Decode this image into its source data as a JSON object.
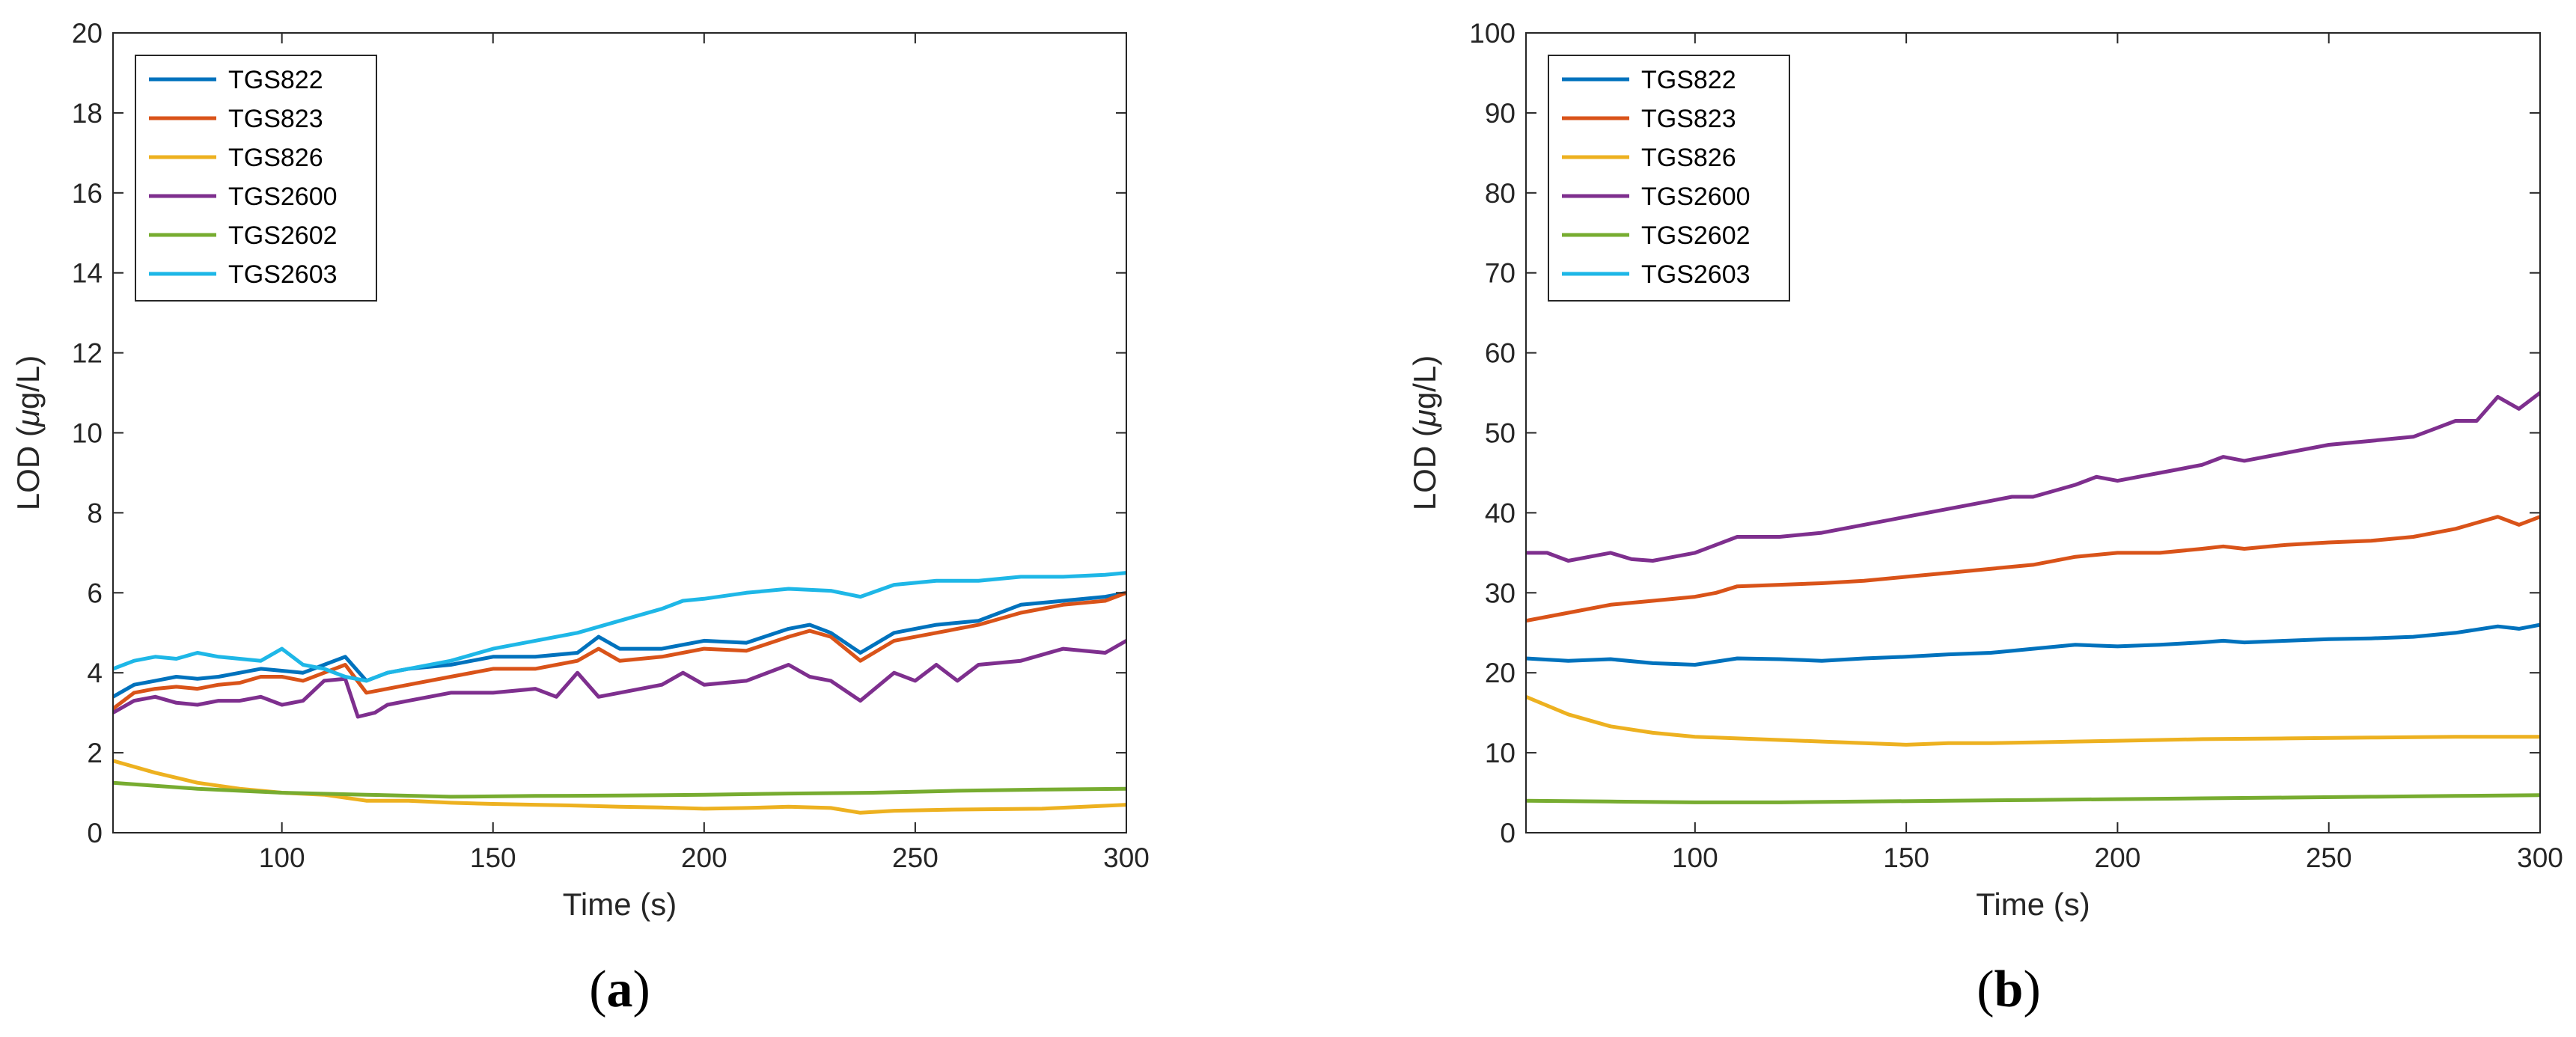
{
  "chart_data": [
    {
      "type": "line",
      "panel_label": "a",
      "xlabel": "Time (s)",
      "ylabel_prefix": "LOD (",
      "ylabel_mu": "μ",
      "ylabel_suffix": "g/L)",
      "xlim": [
        60,
        300
      ],
      "ylim": [
        0,
        20
      ],
      "xticks": [
        100,
        150,
        200,
        250,
        300
      ],
      "yticks": [
        0,
        2,
        4,
        6,
        8,
        10,
        12,
        14,
        16,
        18,
        20
      ],
      "legend_position": "top-left",
      "series": [
        {
          "name": "TGS822",
          "color": "#0072BD",
          "x": [
            60,
            65,
            70,
            75,
            80,
            85,
            90,
            95,
            100,
            105,
            110,
            115,
            120,
            125,
            130,
            140,
            150,
            160,
            170,
            175,
            180,
            190,
            200,
            210,
            220,
            225,
            230,
            237,
            245,
            255,
            265,
            275,
            285,
            295,
            300
          ],
          "y": [
            3.4,
            3.7,
            3.8,
            3.9,
            3.85,
            3.9,
            4.0,
            4.1,
            4.05,
            4.0,
            4.2,
            4.4,
            3.8,
            4.0,
            4.1,
            4.2,
            4.4,
            4.4,
            4.5,
            4.9,
            4.6,
            4.6,
            4.8,
            4.75,
            5.1,
            5.2,
            5.0,
            4.5,
            5.0,
            5.2,
            5.3,
            5.7,
            5.8,
            5.9,
            6.0
          ]
        },
        {
          "name": "TGS823",
          "color": "#D95319",
          "x": [
            60,
            65,
            70,
            75,
            80,
            85,
            90,
            95,
            100,
            105,
            110,
            115,
            120,
            125,
            130,
            140,
            150,
            160,
            170,
            175,
            180,
            190,
            200,
            210,
            220,
            225,
            230,
            237,
            245,
            255,
            265,
            275,
            285,
            295,
            300
          ],
          "y": [
            3.1,
            3.5,
            3.6,
            3.65,
            3.6,
            3.7,
            3.75,
            3.9,
            3.9,
            3.8,
            4.0,
            4.2,
            3.5,
            3.6,
            3.7,
            3.9,
            4.1,
            4.1,
            4.3,
            4.6,
            4.3,
            4.4,
            4.6,
            4.55,
            4.9,
            5.05,
            4.9,
            4.3,
            4.8,
            5.0,
            5.2,
            5.5,
            5.7,
            5.8,
            6.0
          ]
        },
        {
          "name": "TGS826",
          "color": "#EDB120",
          "x": [
            60,
            70,
            80,
            90,
            100,
            110,
            120,
            130,
            140,
            150,
            160,
            170,
            180,
            190,
            200,
            210,
            220,
            230,
            237,
            245,
            260,
            280,
            300
          ],
          "y": [
            1.8,
            1.5,
            1.25,
            1.1,
            1.0,
            0.95,
            0.8,
            0.8,
            0.75,
            0.72,
            0.7,
            0.68,
            0.65,
            0.63,
            0.6,
            0.62,
            0.65,
            0.62,
            0.5,
            0.55,
            0.58,
            0.6,
            0.7
          ]
        },
        {
          "name": "TGS2600",
          "color": "#7E2F8E",
          "x": [
            60,
            65,
            70,
            75,
            80,
            85,
            90,
            95,
            100,
            105,
            110,
            115,
            118,
            122,
            125,
            130,
            140,
            150,
            160,
            165,
            170,
            175,
            180,
            190,
            195,
            200,
            210,
            220,
            225,
            230,
            237,
            245,
            250,
            255,
            260,
            265,
            275,
            285,
            295,
            300
          ],
          "y": [
            3.0,
            3.3,
            3.4,
            3.25,
            3.2,
            3.3,
            3.3,
            3.4,
            3.2,
            3.3,
            3.8,
            3.85,
            2.9,
            3.0,
            3.2,
            3.3,
            3.5,
            3.5,
            3.6,
            3.4,
            4.0,
            3.4,
            3.5,
            3.7,
            4.0,
            3.7,
            3.8,
            4.2,
            3.9,
            3.8,
            3.3,
            4.0,
            3.8,
            4.2,
            3.8,
            4.2,
            4.3,
            4.6,
            4.5,
            4.8
          ]
        },
        {
          "name": "TGS2602",
          "color": "#77AC30",
          "x": [
            60,
            80,
            100,
            120,
            140,
            160,
            180,
            200,
            220,
            240,
            260,
            280,
            300
          ],
          "y": [
            1.25,
            1.1,
            1.0,
            0.95,
            0.9,
            0.92,
            0.93,
            0.95,
            0.98,
            1.0,
            1.05,
            1.08,
            1.1
          ]
        },
        {
          "name": "TGS2603",
          "color": "#1EB7E7",
          "x": [
            60,
            65,
            70,
            75,
            80,
            85,
            90,
            95,
            100,
            105,
            110,
            115,
            120,
            125,
            130,
            140,
            150,
            160,
            170,
            180,
            190,
            195,
            200,
            210,
            220,
            230,
            237,
            245,
            255,
            265,
            275,
            285,
            295,
            300
          ],
          "y": [
            4.1,
            4.3,
            4.4,
            4.35,
            4.5,
            4.4,
            4.35,
            4.3,
            4.6,
            4.2,
            4.1,
            3.9,
            3.8,
            4.0,
            4.1,
            4.3,
            4.6,
            4.8,
            5.0,
            5.3,
            5.6,
            5.8,
            5.85,
            6.0,
            6.1,
            6.05,
            5.9,
            6.2,
            6.3,
            6.3,
            6.4,
            6.4,
            6.45,
            6.5
          ]
        }
      ]
    },
    {
      "type": "line",
      "panel_label": "b",
      "xlabel": "Time (s)",
      "ylabel_prefix": "LOD (",
      "ylabel_mu": "μ",
      "ylabel_suffix": "g/L)",
      "xlim": [
        60,
        300
      ],
      "ylim": [
        0,
        100
      ],
      "xticks": [
        100,
        150,
        200,
        250,
        300
      ],
      "yticks": [
        0,
        10,
        20,
        30,
        40,
        50,
        60,
        70,
        80,
        90,
        100
      ],
      "legend_position": "top-left",
      "series": [
        {
          "name": "TGS822",
          "color": "#0072BD",
          "x": [
            60,
            70,
            80,
            90,
            100,
            110,
            120,
            130,
            140,
            150,
            160,
            170,
            180,
            190,
            200,
            210,
            220,
            225,
            230,
            240,
            250,
            260,
            270,
            280,
            290,
            295,
            300
          ],
          "y": [
            21.8,
            21.5,
            21.7,
            21.2,
            21.0,
            21.8,
            21.7,
            21.5,
            21.8,
            22.0,
            22.3,
            22.5,
            23.0,
            23.5,
            23.3,
            23.5,
            23.8,
            24.0,
            23.8,
            24.0,
            24.2,
            24.3,
            24.5,
            25.0,
            25.8,
            25.5,
            26.0
          ]
        },
        {
          "name": "TGS823",
          "color": "#D95319",
          "x": [
            60,
            70,
            80,
            90,
            100,
            105,
            110,
            120,
            130,
            140,
            150,
            160,
            170,
            180,
            190,
            200,
            210,
            220,
            225,
            230,
            240,
            250,
            260,
            270,
            280,
            290,
            295,
            300
          ],
          "y": [
            26.5,
            27.5,
            28.5,
            29.0,
            29.5,
            30.0,
            30.8,
            31.0,
            31.2,
            31.5,
            32.0,
            32.5,
            33.0,
            33.5,
            34.5,
            35.0,
            35.0,
            35.5,
            35.8,
            35.5,
            36.0,
            36.3,
            36.5,
            37.0,
            38.0,
            39.5,
            38.5,
            39.5
          ]
        },
        {
          "name": "TGS826",
          "color": "#EDB120",
          "x": [
            60,
            70,
            80,
            90,
            100,
            110,
            120,
            130,
            140,
            150,
            160,
            170,
            180,
            190,
            200,
            210,
            220,
            240,
            260,
            280,
            300
          ],
          "y": [
            17.0,
            14.8,
            13.3,
            12.5,
            12.0,
            11.8,
            11.6,
            11.4,
            11.2,
            11.0,
            11.2,
            11.2,
            11.3,
            11.4,
            11.5,
            11.6,
            11.7,
            11.8,
            11.9,
            12.0,
            12.0
          ]
        },
        {
          "name": "TGS2600",
          "color": "#7E2F8E",
          "x": [
            60,
            65,
            70,
            75,
            80,
            85,
            90,
            95,
            100,
            105,
            110,
            120,
            130,
            140,
            150,
            160,
            170,
            175,
            180,
            190,
            195,
            200,
            210,
            220,
            225,
            230,
            240,
            250,
            260,
            270,
            275,
            280,
            285,
            290,
            295,
            300
          ],
          "y": [
            35.0,
            35.0,
            34.0,
            34.5,
            35.0,
            34.2,
            34.0,
            34.5,
            35.0,
            36.0,
            37.0,
            37.0,
            37.5,
            38.5,
            39.5,
            40.5,
            41.5,
            42.0,
            42.0,
            43.5,
            44.5,
            44.0,
            45.0,
            46.0,
            47.0,
            46.5,
            47.5,
            48.5,
            49.0,
            49.5,
            50.5,
            51.5,
            51.5,
            54.5,
            53.0,
            55.0
          ]
        },
        {
          "name": "TGS2602",
          "color": "#77AC30",
          "x": [
            60,
            80,
            100,
            120,
            140,
            160,
            180,
            200,
            220,
            240,
            260,
            280,
            300
          ],
          "y": [
            4.0,
            3.9,
            3.8,
            3.8,
            3.9,
            4.0,
            4.1,
            4.2,
            4.3,
            4.4,
            4.5,
            4.6,
            4.7
          ]
        },
        {
          "name": "TGS2603",
          "color": "#1EB7E7",
          "x": [],
          "y": []
        }
      ]
    }
  ]
}
